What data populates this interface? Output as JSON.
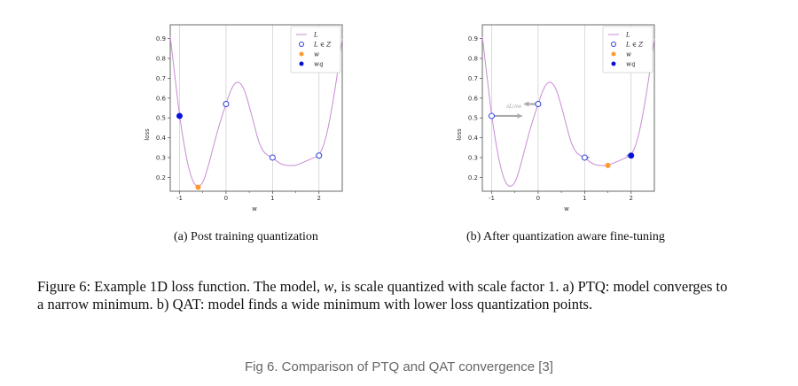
{
  "figure": {
    "subcaption_a": "(a) Post training quantization",
    "subcaption_b": "(b) After quantization aware fine-tuning",
    "caption_line1_pre": "Figure 6: Example 1D loss function. The model, ",
    "caption_symbol": "w",
    "caption_line1_post": ", is scale quantized with scale factor 1. a) PTQ: model converges to",
    "caption_line2": "a narrow minimum. b) QAT: model finds a wide minimum with lower loss quantization points.",
    "web_caption": "Fig 6. Comparison of PTQ and QAT convergence [3]"
  },
  "chart_data": [
    {
      "type": "line",
      "panel": "a",
      "xlabel": "w",
      "ylabel": "loss",
      "xlim": [
        -1.2,
        2.5
      ],
      "ylim": [
        0.13,
        0.97
      ],
      "xticks": [
        "-1",
        "0",
        "1",
        "2"
      ],
      "yticks": [
        "0.2",
        "0.3",
        "0.4",
        "0.5",
        "0.6",
        "0.7",
        "0.8",
        "0.9"
      ],
      "vertical_gridlines_at": [
        -1,
        0,
        1,
        2
      ],
      "legend": [
        "L",
        "L ∈ Z",
        "w",
        "wq"
      ],
      "legend_position": "top-right",
      "colors": {
        "curve": "#c98bd4",
        "integer_points": "#2a3fe0",
        "w": "#ff9a2e",
        "wq": "#0a10d8",
        "grid": "#d0d0d0"
      },
      "curve": {
        "x": [
          -1.2,
          -1.1,
          -1.0,
          -0.9,
          -0.8,
          -0.7,
          -0.6,
          -0.5,
          -0.4,
          -0.3,
          -0.2,
          -0.1,
          0.0,
          0.1,
          0.2,
          0.3,
          0.4,
          0.5,
          0.6,
          0.7,
          0.8,
          0.9,
          1.0,
          1.1,
          1.2,
          1.3,
          1.4,
          1.5,
          1.6,
          1.7,
          1.8,
          1.9,
          2.0,
          2.1,
          2.2,
          2.3,
          2.4,
          2.5
        ],
        "y": [
          0.91,
          0.71,
          0.51,
          0.36,
          0.24,
          0.17,
          0.15,
          0.17,
          0.24,
          0.33,
          0.42,
          0.5,
          0.57,
          0.64,
          0.68,
          0.68,
          0.64,
          0.56,
          0.47,
          0.38,
          0.33,
          0.31,
          0.3,
          0.28,
          0.265,
          0.26,
          0.26,
          0.26,
          0.27,
          0.28,
          0.29,
          0.3,
          0.31,
          0.36,
          0.45,
          0.58,
          0.73,
          0.9
        ]
      },
      "integer_points": [
        {
          "x": -1,
          "y": 0.51
        },
        {
          "x": 0,
          "y": 0.57
        },
        {
          "x": 1,
          "y": 0.3
        },
        {
          "x": 2,
          "y": 0.31
        }
      ],
      "w_point": {
        "x": -0.6,
        "y": 0.15
      },
      "wq_point": {
        "x": -1,
        "y": 0.51
      }
    },
    {
      "type": "line",
      "panel": "b",
      "xlabel": "w",
      "ylabel": "loss",
      "xlim": [
        -1.2,
        2.5
      ],
      "ylim": [
        0.13,
        0.97
      ],
      "xticks": [
        "-1",
        "0",
        "1",
        "2"
      ],
      "yticks": [
        "0.2",
        "0.3",
        "0.4",
        "0.5",
        "0.6",
        "0.7",
        "0.8",
        "0.9"
      ],
      "vertical_gridlines_at": [
        -1,
        0,
        1,
        2
      ],
      "legend": [
        "L",
        "L ∈ Z",
        "w",
        "wq"
      ],
      "legend_position": "top-right",
      "colors": {
        "curve": "#c98bd4",
        "integer_points": "#2a3fe0",
        "w": "#ff9a2e",
        "wq": "#0a10d8",
        "grid": "#d0d0d0",
        "arrow": "#aaaaaa"
      },
      "curve": {
        "x": [
          -1.2,
          -1.1,
          -1.0,
          -0.9,
          -0.8,
          -0.7,
          -0.6,
          -0.5,
          -0.4,
          -0.3,
          -0.2,
          -0.1,
          0.0,
          0.1,
          0.2,
          0.3,
          0.4,
          0.5,
          0.6,
          0.7,
          0.8,
          0.9,
          1.0,
          1.1,
          1.2,
          1.3,
          1.4,
          1.5,
          1.6,
          1.7,
          1.8,
          1.9,
          2.0,
          2.1,
          2.2,
          2.3,
          2.4,
          2.5
        ],
        "y": [
          0.91,
          0.71,
          0.51,
          0.36,
          0.24,
          0.17,
          0.15,
          0.17,
          0.24,
          0.33,
          0.42,
          0.5,
          0.57,
          0.64,
          0.68,
          0.68,
          0.64,
          0.56,
          0.47,
          0.38,
          0.33,
          0.31,
          0.3,
          0.28,
          0.265,
          0.26,
          0.26,
          0.26,
          0.27,
          0.28,
          0.29,
          0.3,
          0.31,
          0.36,
          0.45,
          0.58,
          0.73,
          0.9
        ]
      },
      "integer_points": [
        {
          "x": -1,
          "y": 0.51
        },
        {
          "x": 0,
          "y": 0.57
        },
        {
          "x": 1,
          "y": 0.3
        },
        {
          "x": 2,
          "y": 0.31
        }
      ],
      "w_point": {
        "x": 1.5,
        "y": 0.26
      },
      "wq_point": {
        "x": 2,
        "y": 0.31
      },
      "gradient_arrows": [
        {
          "from": {
            "x": -1,
            "y": 0.51
          },
          "to": {
            "x": -0.35,
            "y": 0.51
          },
          "label": "∂L/∂w"
        },
        {
          "from": {
            "x": 0,
            "y": 0.57
          },
          "to": {
            "x": -0.3,
            "y": 0.57
          }
        },
        {
          "from": {
            "x": 1,
            "y": 0.3
          },
          "to": {
            "x": 1.1,
            "y": 0.3
          }
        },
        {
          "from": {
            "x": 2,
            "y": 0.31
          },
          "to": {
            "x": 1.9,
            "y": 0.31
          }
        }
      ]
    }
  ]
}
